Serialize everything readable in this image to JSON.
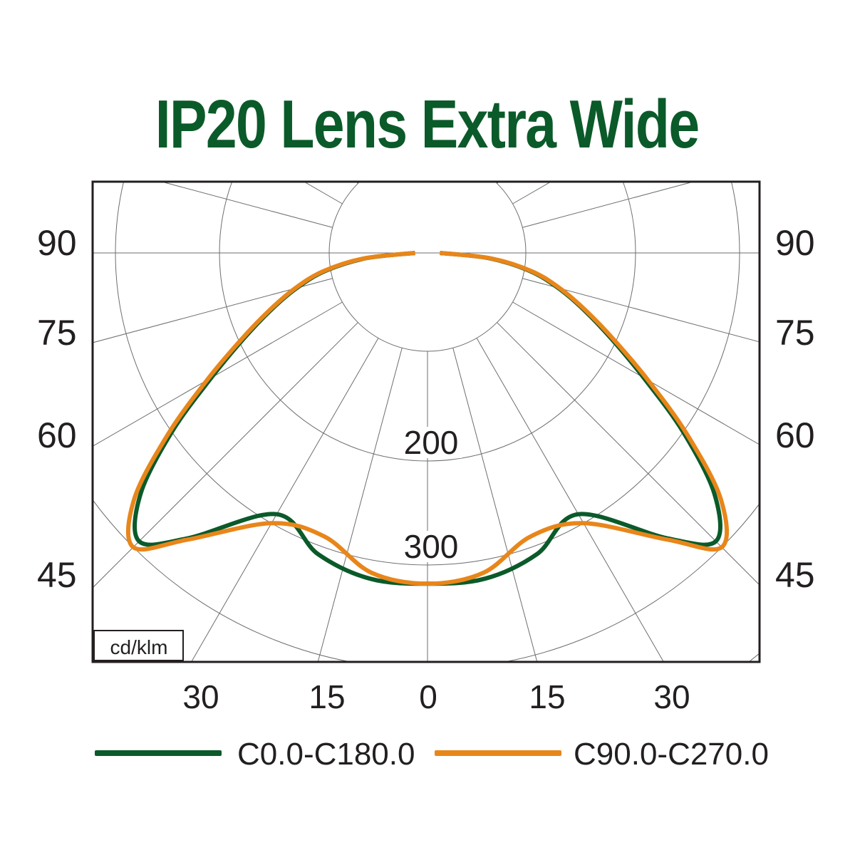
{
  "chart_data": {
    "type": "polar",
    "title": "IP20 Lens Extra Wide",
    "unit_label": "cd/klm",
    "radial_ticks": [
      "200",
      "300"
    ],
    "angle_labels_left": [
      "90",
      "75",
      "60",
      "45"
    ],
    "angle_labels_right": [
      "90",
      "75",
      "60",
      "45"
    ],
    "bottom_labels": [
      "30",
      "15",
      "0",
      "15",
      "30"
    ],
    "angles_deg": [
      0,
      10,
      20,
      30,
      40,
      45,
      50,
      55,
      60,
      65,
      70,
      75,
      80,
      85,
      90
    ],
    "series": [
      {
        "name": "C0.0-C180.0",
        "color": "#0b5a2a",
        "values": [
          318,
          318,
          308,
          290,
          358,
          392,
          360,
          300,
          240,
          195,
          160,
          130,
          100,
          60,
          12
        ]
      },
      {
        "name": "C90.0-C270.0",
        "color": "#e8861a",
        "values": [
          318,
          312,
          290,
          300,
          360,
          400,
          368,
          305,
          245,
          198,
          162,
          132,
          102,
          62,
          12
        ]
      }
    ]
  }
}
